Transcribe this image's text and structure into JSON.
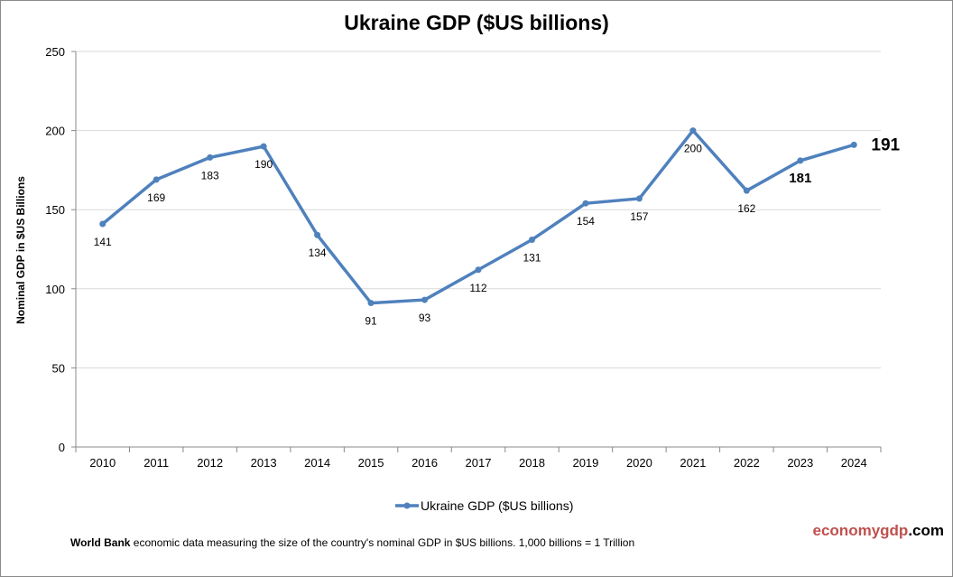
{
  "chart_data": {
    "type": "line",
    "title": "Ukraine GDP ($US billions)",
    "xlabel": "",
    "ylabel": "Nominal GDP in $US Billions",
    "categories": [
      "2010",
      "2011",
      "2012",
      "2013",
      "2014",
      "2015",
      "2016",
      "2017",
      "2018",
      "2019",
      "2020",
      "2021",
      "2022",
      "2023",
      "2024"
    ],
    "series": [
      {
        "name": "Ukraine GDP ($US billions)",
        "values": [
          141,
          169,
          183,
          190,
          134,
          91,
          93,
          112,
          131,
          154,
          157,
          200,
          162,
          181,
          191
        ]
      }
    ],
    "data_labels": [
      "141",
      "169",
      "183",
      "190",
      "134",
      "91",
      "93",
      "112",
      "131",
      "154",
      "157",
      "200",
      "162",
      "181",
      "191"
    ],
    "ylim": [
      0,
      250
    ],
    "yticks": [
      0,
      50,
      100,
      150,
      200,
      250
    ],
    "grid": true,
    "legend": "bottom",
    "line_color": "#4f81bd"
  },
  "footer": {
    "source_bold": "World Bank",
    "text": " economic data  measuring the size of the country's nominal GDP in $US billions. 1,000 billions = 1 Trillion"
  },
  "brand": {
    "part1": "economygdp",
    "part2": ".com",
    "color": "#c0504d"
  }
}
